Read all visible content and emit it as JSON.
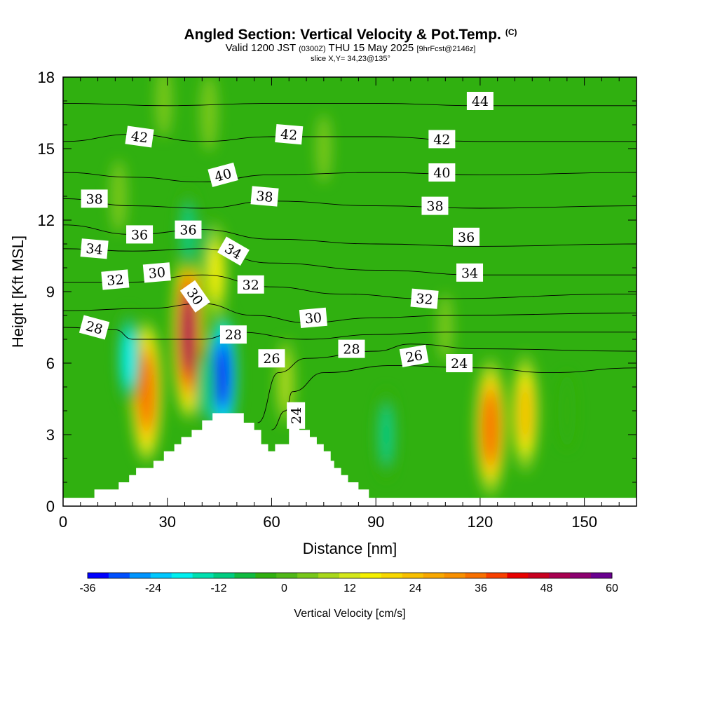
{
  "header": {
    "title": "Angled Section: Vertical Velocity & Pot.Temp.",
    "copyright": "(C)",
    "valid_prefix": "Valid 1200 JST",
    "valid_utc": "(0300Z)",
    "valid_date": "THU 15 May 2025",
    "forecast": "[9hrFcst@2146z]",
    "slice": "slice X,Y= 34,23@135°"
  },
  "chart_data": {
    "type": "heatmap",
    "title": "Angled Section: Vertical Velocity & Pot.Temp.",
    "xlabel": "Distance [nm]",
    "ylabel": "Height [Kft MSL]",
    "xlim": [
      0,
      165
    ],
    "ylim": [
      0,
      18
    ],
    "x_ticks": [
      "0",
      "30",
      "60",
      "90",
      "120",
      "150"
    ],
    "y_ticks": [
      "0",
      "3",
      "6",
      "9",
      "12",
      "15",
      "18"
    ],
    "colorbar": {
      "label": "Vertical Velocity [cm/s]",
      "ticks": [
        "-36",
        "-24",
        "-12",
        "0",
        "12",
        "24",
        "36",
        "48",
        "60"
      ],
      "levels": [
        -36,
        -32,
        -28,
        -24,
        -20,
        -16,
        -12,
        -8,
        -4,
        0,
        4,
        8,
        12,
        16,
        20,
        24,
        28,
        32,
        36,
        40,
        44,
        48,
        52,
        56,
        60
      ],
      "colors": [
        "#0000ff",
        "#0050ff",
        "#0095ff",
        "#00c8ff",
        "#00f0f0",
        "#00e0b0",
        "#00cc80",
        "#10bb40",
        "#30b010",
        "#50b818",
        "#78c81a",
        "#a8d81a",
        "#d4e81a",
        "#f5f000",
        "#f8d800",
        "#f8c000",
        "#f8a800",
        "#f89000",
        "#f87000",
        "#f84000",
        "#e80000",
        "#c80020",
        "#a80050",
        "#8c0070",
        "#6a0090"
      ]
    },
    "velocity_cells": [
      {
        "x": 24,
        "y": 4.8,
        "value": 42
      },
      {
        "x": 36,
        "y": 7.3,
        "value": 58
      },
      {
        "x": 46,
        "y": 5.5,
        "value": -36
      },
      {
        "x": 19,
        "y": 6.2,
        "value": -20
      },
      {
        "x": 41,
        "y": 5.0,
        "value": -16
      },
      {
        "x": 93,
        "y": 3.0,
        "value": -16
      },
      {
        "x": 145,
        "y": 4.0,
        "value": -10
      },
      {
        "x": 123,
        "y": 3.3,
        "value": 40
      },
      {
        "x": 133,
        "y": 3.9,
        "value": 30
      },
      {
        "x": 64,
        "y": 5.2,
        "value": 14
      },
      {
        "x": 29,
        "y": 17.0,
        "value": 8
      },
      {
        "x": 42,
        "y": 16.5,
        "value": 10
      },
      {
        "x": 16,
        "y": 13.0,
        "value": 8
      },
      {
        "x": 36,
        "y": 11.5,
        "value": -14
      },
      {
        "x": 42,
        "y": 10.5,
        "value": -12
      },
      {
        "x": 44,
        "y": 9.8,
        "value": 20
      },
      {
        "x": 110,
        "y": 7.5,
        "value": 6
      },
      {
        "x": 75,
        "y": 15.0,
        "value": 6
      }
    ],
    "theta_contours": [
      {
        "label": "24",
        "points": [
          [
            60,
            3.2
          ],
          [
            64,
            4.0
          ],
          [
            66,
            4.8
          ],
          [
            75,
            5.6
          ],
          [
            95,
            5.9
          ],
          [
            120,
            5.8
          ],
          [
            140,
            5.6
          ],
          [
            165,
            5.8
          ]
        ]
      },
      {
        "label": "26",
        "points": [
          [
            56,
            3.5
          ],
          [
            62,
            5.6
          ],
          [
            70,
            6.2
          ],
          [
            90,
            6.5
          ],
          [
            100,
            6.8
          ],
          [
            120,
            6.6
          ],
          [
            165,
            6.5
          ]
        ]
      },
      {
        "label": "28",
        "points": [
          [
            0,
            7.5
          ],
          [
            15,
            7.4
          ],
          [
            20,
            7.0
          ],
          [
            40,
            7.0
          ],
          [
            50,
            7.3
          ],
          [
            70,
            7.0
          ],
          [
            90,
            7.2
          ],
          [
            110,
            7.3
          ],
          [
            165,
            7.3
          ]
        ]
      },
      {
        "label": "30",
        "points": [
          [
            0,
            8.2
          ],
          [
            25,
            8.3
          ],
          [
            40,
            8.5
          ],
          [
            55,
            8.0
          ],
          [
            70,
            7.7
          ],
          [
            90,
            7.9
          ],
          [
            110,
            8.0
          ],
          [
            165,
            8.1
          ]
        ]
      },
      {
        "label": "32",
        "points": [
          [
            0,
            9.4
          ],
          [
            20,
            9.4
          ],
          [
            40,
            9.7
          ],
          [
            60,
            9.2
          ],
          [
            80,
            8.9
          ],
          [
            105,
            8.7
          ],
          [
            165,
            8.9
          ]
        ]
      },
      {
        "label": "34",
        "points": [
          [
            0,
            10.8
          ],
          [
            20,
            10.7
          ],
          [
            40,
            10.8
          ],
          [
            60,
            10.2
          ],
          [
            90,
            9.9
          ],
          [
            120,
            9.7
          ],
          [
            165,
            9.7
          ]
        ]
      },
      {
        "label": "36",
        "points": [
          [
            0,
            11.8
          ],
          [
            20,
            11.4
          ],
          [
            40,
            11.6
          ],
          [
            60,
            11.2
          ],
          [
            90,
            11.0
          ],
          [
            120,
            10.9
          ],
          [
            165,
            11.0
          ]
        ]
      },
      {
        "label": "38",
        "points": [
          [
            0,
            12.9
          ],
          [
            20,
            12.6
          ],
          [
            40,
            12.5
          ],
          [
            60,
            12.8
          ],
          [
            90,
            12.6
          ],
          [
            120,
            12.5
          ],
          [
            165,
            12.6
          ]
        ]
      },
      {
        "label": "40",
        "points": [
          [
            0,
            14.0
          ],
          [
            20,
            13.8
          ],
          [
            40,
            13.6
          ],
          [
            60,
            13.9
          ],
          [
            90,
            14.0
          ],
          [
            120,
            13.9
          ],
          [
            165,
            14.0
          ]
        ]
      },
      {
        "label": "42",
        "points": [
          [
            0,
            15.3
          ],
          [
            20,
            15.6
          ],
          [
            40,
            15.3
          ],
          [
            60,
            15.5
          ],
          [
            90,
            15.5
          ],
          [
            120,
            15.3
          ],
          [
            165,
            15.3
          ]
        ]
      },
      {
        "label": "44",
        "points": [
          [
            0,
            16.9
          ],
          [
            30,
            16.8
          ],
          [
            60,
            16.9
          ],
          [
            90,
            16.9
          ],
          [
            120,
            16.8
          ],
          [
            165,
            16.8
          ]
        ]
      }
    ],
    "contour_labels": [
      {
        "text": "44",
        "x": 120,
        "y": 17.0,
        "angle": 0
      },
      {
        "text": "42",
        "x": 22,
        "y": 15.5,
        "angle": 8
      },
      {
        "text": "42",
        "x": 65,
        "y": 15.6,
        "angle": 5
      },
      {
        "text": "42",
        "x": 109,
        "y": 15.4,
        "angle": 0
      },
      {
        "text": "40",
        "x": 46,
        "y": 13.9,
        "angle": -15
      },
      {
        "text": "40",
        "x": 109,
        "y": 14.0,
        "angle": 0
      },
      {
        "text": "38",
        "x": 9,
        "y": 12.9,
        "angle": 0
      },
      {
        "text": "38",
        "x": 58,
        "y": 13.0,
        "angle": 5
      },
      {
        "text": "38",
        "x": 107,
        "y": 12.6,
        "angle": 0
      },
      {
        "text": "36",
        "x": 22,
        "y": 11.4,
        "angle": 0
      },
      {
        "text": "36",
        "x": 36,
        "y": 11.6,
        "angle": 0
      },
      {
        "text": "36",
        "x": 116,
        "y": 11.3,
        "angle": 0
      },
      {
        "text": "34",
        "x": 9,
        "y": 10.8,
        "angle": 5
      },
      {
        "text": "34",
        "x": 49,
        "y": 10.7,
        "angle": 30
      },
      {
        "text": "34",
        "x": 117,
        "y": 9.8,
        "angle": 0
      },
      {
        "text": "32",
        "x": 15,
        "y": 9.5,
        "angle": -5
      },
      {
        "text": "32",
        "x": 54,
        "y": 9.3,
        "angle": 0
      },
      {
        "text": "32",
        "x": 104,
        "y": 8.7,
        "angle": 5
      },
      {
        "text": "30",
        "x": 27,
        "y": 9.8,
        "angle": -5
      },
      {
        "text": "30",
        "x": 38,
        "y": 8.8,
        "angle": 55
      },
      {
        "text": "30",
        "x": 72,
        "y": 7.9,
        "angle": -5
      },
      {
        "text": "28",
        "x": 9,
        "y": 7.5,
        "angle": 15
      },
      {
        "text": "28",
        "x": 49,
        "y": 7.2,
        "angle": 0
      },
      {
        "text": "28",
        "x": 83,
        "y": 6.6,
        "angle": 0
      },
      {
        "text": "26",
        "x": 60,
        "y": 6.2,
        "angle": 0
      },
      {
        "text": "26",
        "x": 101,
        "y": 6.3,
        "angle": -10
      },
      {
        "text": "24",
        "x": 114,
        "y": 6.0,
        "angle": 0
      },
      {
        "text": "24",
        "x": 67,
        "y": 3.8,
        "angle": -90
      }
    ],
    "terrain": [
      [
        0,
        0.35
      ],
      [
        9,
        0.35
      ],
      [
        9,
        0.7
      ],
      [
        16,
        0.7
      ],
      [
        16,
        1.0
      ],
      [
        19,
        1.0
      ],
      [
        19,
        1.3
      ],
      [
        21,
        1.3
      ],
      [
        21,
        1.6
      ],
      [
        26,
        1.6
      ],
      [
        26,
        1.9
      ],
      [
        29,
        1.9
      ],
      [
        29,
        2.3
      ],
      [
        32,
        2.3
      ],
      [
        32,
        2.6
      ],
      [
        34,
        2.6
      ],
      [
        34,
        2.9
      ],
      [
        37,
        2.9
      ],
      [
        37,
        3.2
      ],
      [
        40,
        3.2
      ],
      [
        40,
        3.6
      ],
      [
        43,
        3.6
      ],
      [
        43,
        3.9
      ],
      [
        52,
        3.9
      ],
      [
        52,
        3.5
      ],
      [
        55,
        3.5
      ],
      [
        55,
        3.2
      ],
      [
        57,
        3.2
      ],
      [
        57,
        2.6
      ],
      [
        59,
        2.6
      ],
      [
        59,
        2.3
      ],
      [
        61,
        2.3
      ],
      [
        61,
        2.6
      ],
      [
        63,
        2.6
      ],
      [
        63,
        2.6
      ],
      [
        65,
        2.6
      ],
      [
        65,
        3.6
      ],
      [
        68,
        3.6
      ],
      [
        68,
        3.2
      ],
      [
        71,
        3.2
      ],
      [
        71,
        2.9
      ],
      [
        73,
        2.9
      ],
      [
        73,
        2.6
      ],
      [
        75,
        2.6
      ],
      [
        75,
        2.3
      ],
      [
        77,
        2.3
      ],
      [
        77,
        1.9
      ],
      [
        78,
        1.9
      ],
      [
        78,
        1.6
      ],
      [
        80,
        1.6
      ],
      [
        80,
        1.3
      ],
      [
        82,
        1.3
      ],
      [
        82,
        1.0
      ],
      [
        85,
        1.0
      ],
      [
        85,
        0.7
      ],
      [
        88,
        0.7
      ],
      [
        88,
        0.35
      ],
      [
        165,
        0.35
      ]
    ]
  }
}
